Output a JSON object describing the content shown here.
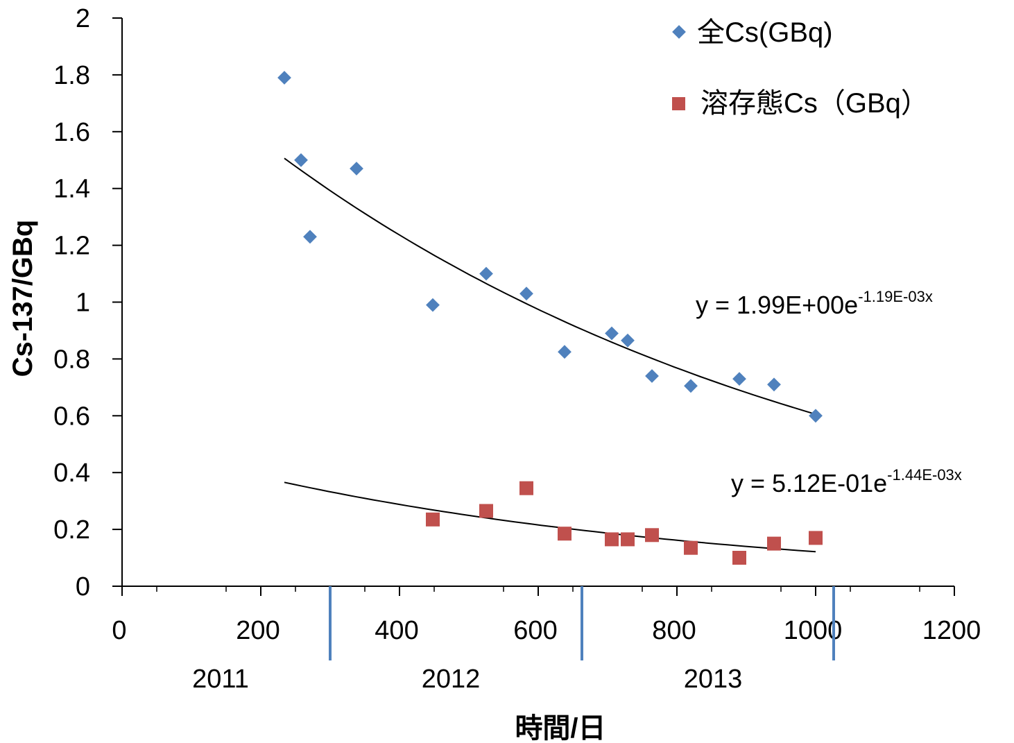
{
  "chart_data": {
    "type": "scatter",
    "xlabel": "時間/日",
    "ylabel": "Cs-137/GBq",
    "xlim": [
      0,
      1200
    ],
    "ylim": [
      0,
      2
    ],
    "x_ticks": [
      0,
      200,
      400,
      600,
      800,
      1000,
      1200
    ],
    "y_ticks": [
      0,
      0.2,
      0.4,
      0.6,
      0.8,
      1,
      1.2,
      1.4,
      1.6,
      1.8,
      2
    ],
    "x_tick_labels": [
      "0",
      "200",
      "400",
      "600",
      "800",
      "1000",
      "1200"
    ],
    "y_tick_labels": [
      "0",
      "0.2",
      "0.4",
      "0.6",
      "0.8",
      "1",
      "1.2",
      "1.4",
      "1.6",
      "1.8",
      "2"
    ],
    "year_markers": [
      300,
      663,
      1026
    ],
    "year_labels": [
      {
        "label": "2011",
        "x": 142
      },
      {
        "label": "2012",
        "x": 474
      },
      {
        "label": "2013",
        "x": 852
      }
    ],
    "legend_position": "top-right",
    "series": [
      {
        "name": "全Cs(GBq)",
        "marker": "diamond",
        "color": "#4F81BD",
        "points": [
          [
            234,
            1.79
          ],
          [
            258,
            1.5
          ],
          [
            271,
            1.23
          ],
          [
            338,
            1.47
          ],
          [
            448,
            0.99
          ],
          [
            525,
            1.1
          ],
          [
            583,
            1.03
          ],
          [
            638,
            0.825
          ],
          [
            706,
            0.89
          ],
          [
            729,
            0.865
          ],
          [
            764,
            0.74
          ],
          [
            820,
            0.705
          ],
          [
            890,
            0.73
          ],
          [
            940,
            0.71
          ],
          [
            1000,
            0.6
          ]
        ],
        "trendline": {
          "a": 1.99,
          "b": 0.00119,
          "x_range": [
            234,
            1000
          ],
          "equation": "y = 1.99E+00e",
          "exponent": "-1.19E-03x"
        }
      },
      {
        "name": "溶存態Cs（GBq）",
        "marker": "square",
        "color": "#C0504D",
        "points": [
          [
            448,
            0.235
          ],
          [
            525,
            0.265
          ],
          [
            583,
            0.345
          ],
          [
            638,
            0.185
          ],
          [
            706,
            0.165
          ],
          [
            729,
            0.165
          ],
          [
            764,
            0.18
          ],
          [
            820,
            0.135
          ],
          [
            890,
            0.1
          ],
          [
            940,
            0.15
          ],
          [
            1000,
            0.17
          ]
        ],
        "trendline": {
          "a": 0.512,
          "b": 0.00144,
          "x_range": [
            234,
            1000
          ],
          "equation": "y = 5.12E-01e",
          "exponent": "-1.44E-03x"
        }
      }
    ]
  }
}
